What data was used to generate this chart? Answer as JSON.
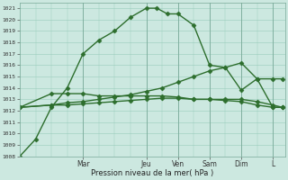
{
  "background_color": "#cce8e0",
  "plot_bg_color": "#cce8e0",
  "grid_color": "#99ccbb",
  "line_color": "#2d6e2d",
  "xlabel": "Pression niveau de la mer( hPa )",
  "ylim": [
    1008,
    1021.5
  ],
  "ytick_min": 1008,
  "ytick_max": 1021,
  "day_labels": [
    "Mar",
    "Jeu",
    "Ven",
    "Sam",
    "Dim",
    "L"
  ],
  "day_positions": [
    2,
    4,
    5,
    6,
    7,
    8
  ],
  "xlim": [
    0,
    8.4
  ],
  "series": [
    {
      "x": [
        0,
        0.5,
        1,
        1.5,
        2,
        2.5,
        3,
        3.5,
        4,
        4.33,
        4.67,
        5,
        5.5,
        6,
        6.5,
        7,
        7.5,
        8,
        8.3
      ],
      "y": [
        1008,
        1009.5,
        1012.3,
        1014,
        1017,
        1018.2,
        1019,
        1020.2,
        1021,
        1021,
        1020.5,
        1020.5,
        1019.5,
        1016,
        1015.8,
        1016.2,
        1014.8,
        1014.8,
        1014.8
      ],
      "marker": "D",
      "markersize": 2.5,
      "linewidth": 1.0
    },
    {
      "x": [
        0,
        1,
        1.5,
        2,
        2.5,
        3,
        3.5,
        4,
        4.5,
        5,
        5.5,
        6,
        6.5,
        7,
        7.5,
        8,
        8.3
      ],
      "y": [
        1012.3,
        1012.5,
        1012.7,
        1012.8,
        1013.0,
        1013.2,
        1013.4,
        1013.7,
        1014.0,
        1014.5,
        1015.0,
        1015.5,
        1015.8,
        1013.8,
        1014.8,
        1012.3,
        1012.3
      ],
      "marker": "D",
      "markersize": 2.5,
      "linewidth": 1.0
    },
    {
      "x": [
        0,
        1,
        1.5,
        2,
        2.5,
        3,
        3.5,
        4,
        4.5,
        5,
        5.5,
        6,
        6.5,
        7,
        7.5,
        8,
        8.3
      ],
      "y": [
        1012.3,
        1013.5,
        1013.5,
        1013.5,
        1013.3,
        1013.3,
        1013.3,
        1013.3,
        1013.3,
        1013.2,
        1013.0,
        1013.0,
        1013.0,
        1013.0,
        1012.8,
        1012.5,
        1012.3
      ],
      "marker": "D",
      "markersize": 2.5,
      "linewidth": 1.0
    },
    {
      "x": [
        0,
        1,
        1.5,
        2,
        2.5,
        3,
        3.5,
        4,
        4.5,
        5,
        5.5,
        6,
        6.5,
        7,
        7.5,
        8,
        8.3
      ],
      "y": [
        1012.3,
        1012.5,
        1012.5,
        1012.6,
        1012.7,
        1012.8,
        1012.9,
        1013.0,
        1013.1,
        1013.1,
        1013.0,
        1013.0,
        1012.9,
        1012.8,
        1012.5,
        1012.3,
        1012.3
      ],
      "marker": "D",
      "markersize": 2.5,
      "linewidth": 1.0
    }
  ]
}
